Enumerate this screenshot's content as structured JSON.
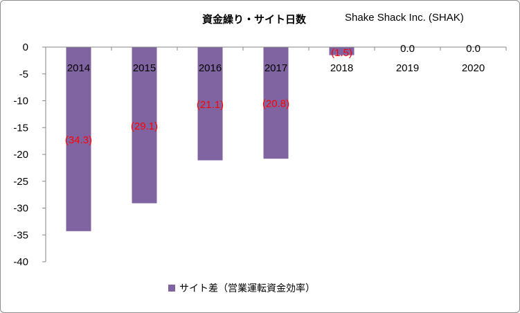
{
  "title": "資金繰り・サイト日数",
  "subtitle": "Shake Shack Inc. (SHAK)",
  "colors": {
    "bar": "#8064A2",
    "data_label": "#ff0000",
    "axis": "#868686"
  },
  "legend": {
    "label": "サイト差（営業運転資金効率）"
  },
  "chart_data": {
    "type": "bar",
    "title": "資金繰り・サイト日数",
    "subtitle": "Shake Shack Inc. (SHAK)",
    "categories": [
      "2014",
      "2015",
      "2016",
      "2017",
      "2018",
      "2019",
      "2020"
    ],
    "series": [
      {
        "name": "サイト差（営業運転資金効率）",
        "values": [
          -34.3,
          -29.1,
          -21.1,
          -20.8,
          -1.5,
          0.0,
          0.0
        ],
        "labels": [
          "(34.3)",
          "(29.1)",
          "(21.1)",
          "(20.8)",
          "(1.5)",
          "0.0",
          "0.0"
        ]
      }
    ],
    "ylim": [
      -40,
      0
    ],
    "yticks": [
      0,
      -5,
      -10,
      -15,
      -20,
      -25,
      -30,
      -35,
      -40
    ],
    "grid": false,
    "legend_position": "bottom"
  }
}
